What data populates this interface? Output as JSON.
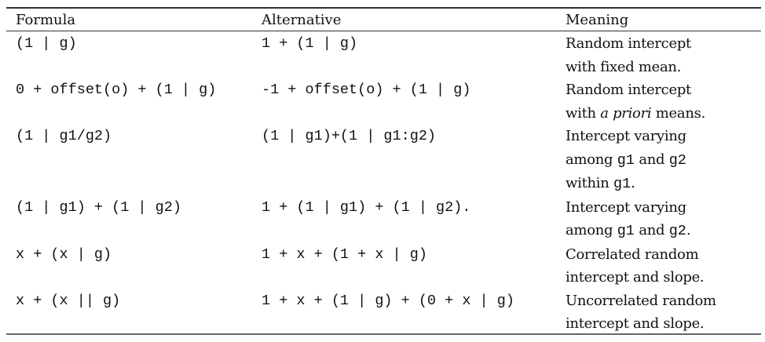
{
  "headers": {
    "formula": "Formula",
    "alternative": "Alternative",
    "meaning": "Meaning"
  },
  "rows": [
    {
      "formula": "(1 | g)",
      "alternative": "1 + (1 | g)",
      "meaning": [
        [
          {
            "t": "Random intercept",
            "s": "r"
          }
        ],
        [
          {
            "t": "with fixed mean.",
            "s": "r"
          }
        ]
      ]
    },
    {
      "formula": "0 + offset(o) + (1 | g)",
      "alternative": "-1 + offset(o) + (1 | g)",
      "meaning": [
        [
          {
            "t": "Random intercept",
            "s": "r"
          }
        ],
        [
          {
            "t": "with ",
            "s": "r"
          },
          {
            "t": "a priori",
            "s": "i"
          },
          {
            "t": " means.",
            "s": "r"
          }
        ]
      ]
    },
    {
      "formula": "(1 | g1/g2)",
      "alternative": "(1 | g1)+(1 | g1:g2)",
      "meaning": [
        [
          {
            "t": "Intercept varying",
            "s": "r"
          }
        ],
        [
          {
            "t": "among ",
            "s": "r"
          },
          {
            "t": "g1",
            "s": "m"
          },
          {
            "t": " and ",
            "s": "r"
          },
          {
            "t": "g2",
            "s": "m"
          }
        ],
        [
          {
            "t": "within ",
            "s": "r"
          },
          {
            "t": "g1",
            "s": "m"
          },
          {
            "t": ".",
            "s": "r"
          }
        ]
      ]
    },
    {
      "formula": "(1 | g1) + (1 | g2)",
      "alternative": "1 + (1 | g1) + (1 | g2).",
      "meaning": [
        [
          {
            "t": "Intercept varying",
            "s": "r"
          }
        ],
        [
          {
            "t": "among ",
            "s": "r"
          },
          {
            "t": "g1",
            "s": "m"
          },
          {
            "t": " and ",
            "s": "r"
          },
          {
            "t": "g2",
            "s": "m"
          },
          {
            "t": ".",
            "s": "r"
          }
        ]
      ]
    },
    {
      "formula": "x + (x | g)",
      "alternative": "1 + x + (1 + x | g)",
      "meaning": [
        [
          {
            "t": "Correlated random",
            "s": "r"
          }
        ],
        [
          {
            "t": "intercept and slope.",
            "s": "r"
          }
        ]
      ]
    },
    {
      "formula": "x + (x || g)",
      "alternative": "1 + x + (1 | g) + (0 + x | g)",
      "meaning": [
        [
          {
            "t": "Uncorrelated random",
            "s": "r"
          }
        ],
        [
          {
            "t": "intercept and slope.",
            "s": "r"
          }
        ]
      ]
    }
  ]
}
